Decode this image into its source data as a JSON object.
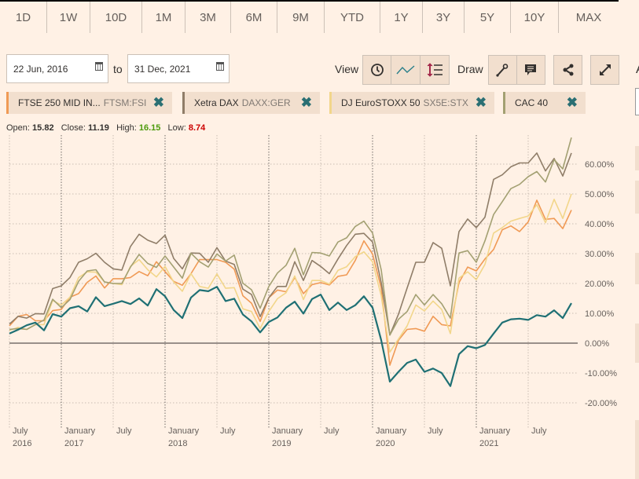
{
  "periods": [
    "1D",
    "1W",
    "10D",
    "1M",
    "3M",
    "6M",
    "9M",
    "YTD",
    "1Y",
    "3Y",
    "5Y",
    "10Y",
    "MAX"
  ],
  "date_range": {
    "from": "22 Jun, 2016",
    "to_label": "to",
    "to": "31 Dec, 2021"
  },
  "toolbar": {
    "view_label": "View",
    "draw_label": "Draw",
    "view_icons": [
      "clock-icon",
      "line-chart-icon",
      "indicator-icon"
    ],
    "draw_icons": [
      "draw-line-icon",
      "annotation-icon"
    ],
    "share_icon": "share-icon",
    "expand_icon": "expand-icon"
  },
  "legend": [
    {
      "name": "FTSE 250 MID IN...",
      "symbol": "FTSM:FSI",
      "color": "#f09a55"
    },
    {
      "name": "Xetra DAX",
      "symbol": "DAXX:GER",
      "color": "#8f7d68"
    },
    {
      "name": "DJ EuroSTOXX 50",
      "symbol": "SX5E:STX",
      "color": "#f2d68a"
    },
    {
      "name": "CAC 40",
      "symbol": "",
      "color": "#a3a072"
    }
  ],
  "ohlc": {
    "open_label": "Open:",
    "open": "15.82",
    "close_label": "Close:",
    "close": "11.19",
    "high_label": "High:",
    "high": "16.15",
    "low_label": "Low:",
    "low": "8.74",
    "high_color": "#4d9a0c",
    "low_color": "#cc0000"
  },
  "right_panel": {
    "label": "A"
  },
  "chart_data": {
    "type": "line",
    "ylim": [
      -20,
      70
    ],
    "yticks": [
      "60.00%",
      "50.00%",
      "40.00%",
      "30.00%",
      "20.00%",
      "10.00%",
      "0.00%",
      "-10.00%",
      "-20.00%"
    ],
    "ytick_values": [
      60,
      50,
      40,
      30,
      20,
      10,
      0,
      -10,
      -20
    ],
    "xticks": [
      {
        "month": "2016-07",
        "l1": "July",
        "l2": "2016"
      },
      {
        "month": "2017-01",
        "l1": "January",
        "l2": "2017"
      },
      {
        "month": "2017-07",
        "l1": "July",
        "l2": ""
      },
      {
        "month": "2018-01",
        "l1": "January",
        "l2": "2018"
      },
      {
        "month": "2018-07",
        "l1": "July",
        "l2": ""
      },
      {
        "month": "2019-01",
        "l1": "January",
        "l2": "2019"
      },
      {
        "month": "2019-07",
        "l1": "July",
        "l2": ""
      },
      {
        "month": "2020-01",
        "l1": "January",
        "l2": "2020"
      },
      {
        "month": "2020-07",
        "l1": "July",
        "l2": ""
      },
      {
        "month": "2021-01",
        "l1": "January",
        "l2": "2021"
      },
      {
        "month": "2021-07",
        "l1": "July",
        "l2": ""
      }
    ],
    "grid": true,
    "x": [
      "2016-07",
      "2016-08",
      "2016-09",
      "2016-10",
      "2016-11",
      "2016-12",
      "2017-01",
      "2017-02",
      "2017-03",
      "2017-04",
      "2017-05",
      "2017-06",
      "2017-07",
      "2017-08",
      "2017-09",
      "2017-10",
      "2017-11",
      "2017-12",
      "2018-01",
      "2018-02",
      "2018-03",
      "2018-04",
      "2018-05",
      "2018-06",
      "2018-07",
      "2018-08",
      "2018-09",
      "2018-10",
      "2018-11",
      "2018-12",
      "2019-01",
      "2019-02",
      "2019-03",
      "2019-04",
      "2019-05",
      "2019-06",
      "2019-07",
      "2019-08",
      "2019-09",
      "2019-10",
      "2019-11",
      "2019-12",
      "2020-01",
      "2020-02",
      "2020-03",
      "2020-04",
      "2020-05",
      "2020-06",
      "2020-07",
      "2020-08",
      "2020-09",
      "2020-10",
      "2020-11",
      "2020-12",
      "2021-01",
      "2021-02",
      "2021-03",
      "2021-04",
      "2021-05",
      "2021-06",
      "2021-07",
      "2021-08",
      "2021-09",
      "2021-10",
      "2021-11",
      "2021-12"
    ],
    "series": [
      {
        "name": "FTSE 250 MID IN...",
        "color": "#f09a55",
        "values": [
          5.8,
          9.0,
          9.6,
          7.5,
          7.5,
          10.9,
          11.3,
          15.4,
          16.6,
          20.4,
          22.5,
          18.5,
          21.6,
          21.6,
          22.0,
          24.0,
          22.6,
          27.3,
          24.0,
          20.7,
          19.4,
          23.3,
          28.0,
          28.0,
          28.0,
          27.1,
          24.8,
          15.9,
          13.4,
          7.3,
          15.2,
          17.8,
          17.2,
          22.0,
          16.6,
          19.6,
          20.3,
          19.5,
          22.4,
          22.9,
          27.7,
          34.3,
          29.9,
          18.5,
          -7.4,
          1.0,
          4.6,
          4.9,
          4.0,
          9.0,
          6.2,
          5.8,
          20.3,
          25.5,
          24.2,
          28.2,
          31.4,
          38.0,
          39.3,
          37.4,
          40.6,
          47.9,
          41.5,
          41.8,
          38.4,
          44.6
        ]
      },
      {
        "name": "Xetra DAX",
        "color": "#8f7d68",
        "values": [
          6.4,
          9.0,
          8.4,
          9.9,
          9.8,
          18.3,
          19.2,
          22.0,
          27.1,
          28.3,
          30.1,
          27.1,
          24.9,
          24.5,
          32.4,
          36.5,
          34.5,
          33.4,
          36.2,
          28.4,
          24.9,
          30.2,
          30.1,
          27.1,
          32.0,
          27.5,
          26.4,
          18.1,
          16.3,
          8.9,
          15.2,
          19.0,
          19.0,
          27.3,
          21.0,
          27.7,
          25.7,
          23.3,
          28.2,
          32.7,
          36.5,
          36.8,
          33.9,
          20.3,
          2.7,
          9.7,
          18.5,
          27.1,
          27.1,
          33.7,
          31.8,
          19.2,
          37.4,
          41.6,
          38.7,
          42.2,
          54.9,
          56.4,
          59.1,
          60.4,
          60.4,
          63.7,
          57.7,
          61.9,
          56.0,
          63.7
        ]
      },
      {
        "name": "DJ EuroSTOXX 50",
        "color": "#f2d68a",
        "values": [
          4.3,
          5.3,
          4.6,
          6.2,
          6.2,
          14.3,
          12.8,
          15.4,
          22.0,
          23.9,
          23.8,
          20.5,
          20.0,
          19.6,
          25.7,
          28.0,
          24.6,
          22.2,
          25.7,
          20.5,
          17.4,
          23.3,
          19.0,
          18.4,
          23.2,
          18.4,
          18.6,
          11.5,
          10.6,
          4.9,
          10.6,
          14.9,
          16.9,
          22.5,
          14.6,
          21.0,
          21.0,
          19.8,
          24.4,
          25.6,
          29.0,
          30.6,
          27.3,
          15.9,
          -3.0,
          1.4,
          5.8,
          12.8,
          10.8,
          14.1,
          11.3,
          3.2,
          21.8,
          23.9,
          21.3,
          26.4,
          36.9,
          38.7,
          40.9,
          41.8,
          42.6,
          46.4,
          40.4,
          48.2,
          41.8,
          50.0
        ]
      },
      {
        "name": "CAC 40",
        "color": "#a3a072",
        "values": [
          4.6,
          4.9,
          4.6,
          6.2,
          7.8,
          14.7,
          11.9,
          14.6,
          20.7,
          24.2,
          24.6,
          20.5,
          20.0,
          20.0,
          25.5,
          29.7,
          26.7,
          25.4,
          29.2,
          25.5,
          21.8,
          30.1,
          27.3,
          25.5,
          29.9,
          27.5,
          29.5,
          20.1,
          17.9,
          11.7,
          19.0,
          23.5,
          26.1,
          31.8,
          22.9,
          30.4,
          30.2,
          29.2,
          33.9,
          35.3,
          39.1,
          40.9,
          36.9,
          24.6,
          2.7,
          8.0,
          10.6,
          16.3,
          12.8,
          16.3,
          13.2,
          8.4,
          30.2,
          31.0,
          27.1,
          34.3,
          43.1,
          47.4,
          51.8,
          53.2,
          55.8,
          57.5,
          54.0,
          61.5,
          58.4,
          68.9
        ]
      },
      {
        "color": "#1f7074",
        "values": [
          3.2,
          4.5,
          6.0,
          6.9,
          4.3,
          9.7,
          8.9,
          11.7,
          12.4,
          10.6,
          15.4,
          12.4,
          13.2,
          14.1,
          13.1,
          15.0,
          12.6,
          18.1,
          15.7,
          11.1,
          8.4,
          15.3,
          17.8,
          17.4,
          18.9,
          14.1,
          14.9,
          9.6,
          7.3,
          3.6,
          7.1,
          8.6,
          11.9,
          13.9,
          9.9,
          14.8,
          16.3,
          11.1,
          13.6,
          11.1,
          12.7,
          15.7,
          11.9,
          1.0,
          -12.9,
          -9.6,
          -6.6,
          -5.5,
          -9.6,
          -8.5,
          -10.0,
          -14.4,
          -3.7,
          -1.0,
          -1.7,
          -0.6,
          3.2,
          6.9,
          8.0,
          8.2,
          7.8,
          9.4,
          8.9,
          11.0,
          8.4,
          13.4
        ]
      }
    ]
  }
}
